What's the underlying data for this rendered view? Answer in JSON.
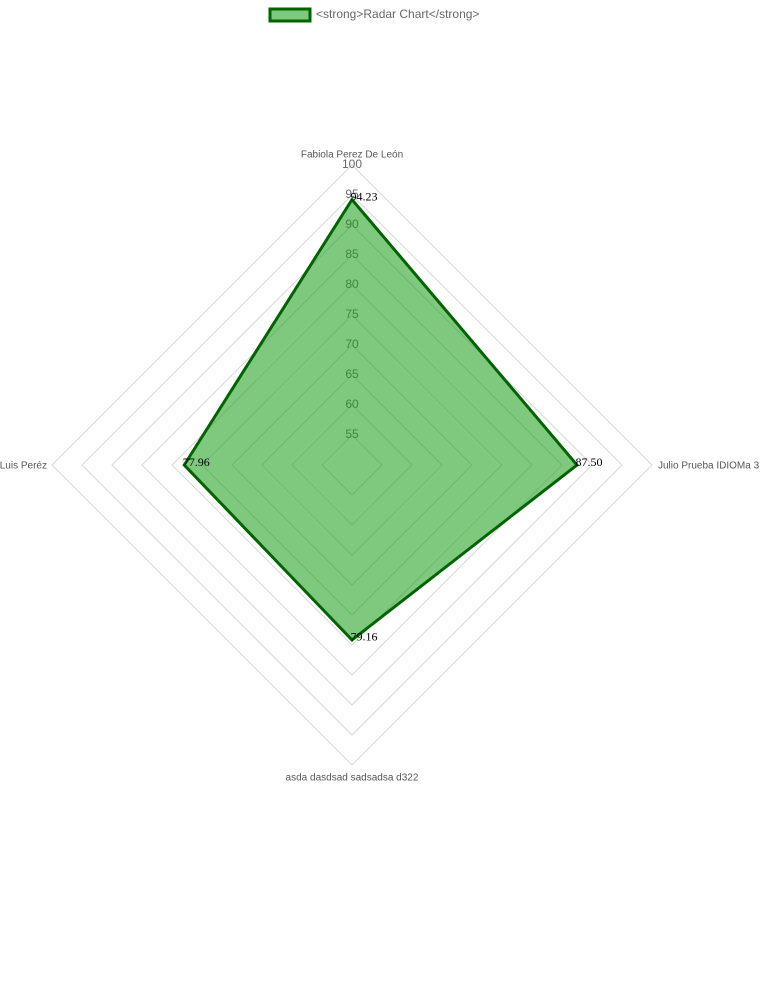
{
  "chart_data": {
    "type": "radar",
    "categories": [
      "Fabiola Perez De León",
      "Julio Prueba IDIOMa 3",
      "asda dasdsad sadsadsa d322",
      "Luis Peréz"
    ],
    "series": [
      {
        "name": "<strong>Radar Chart</strong>",
        "color": "#006400",
        "fill": "rgba(30,160,30,0.57)",
        "values": [
          94.23,
          87.5,
          79.16,
          77.96
        ],
        "value_labels": [
          "94.23",
          "87.50",
          "79.16",
          "77.96"
        ]
      }
    ],
    "rlim": [
      50,
      100
    ],
    "rticks": [
      55,
      60,
      65,
      70,
      75,
      80,
      85,
      90,
      95,
      100
    ],
    "grid": true,
    "legend": "top"
  }
}
